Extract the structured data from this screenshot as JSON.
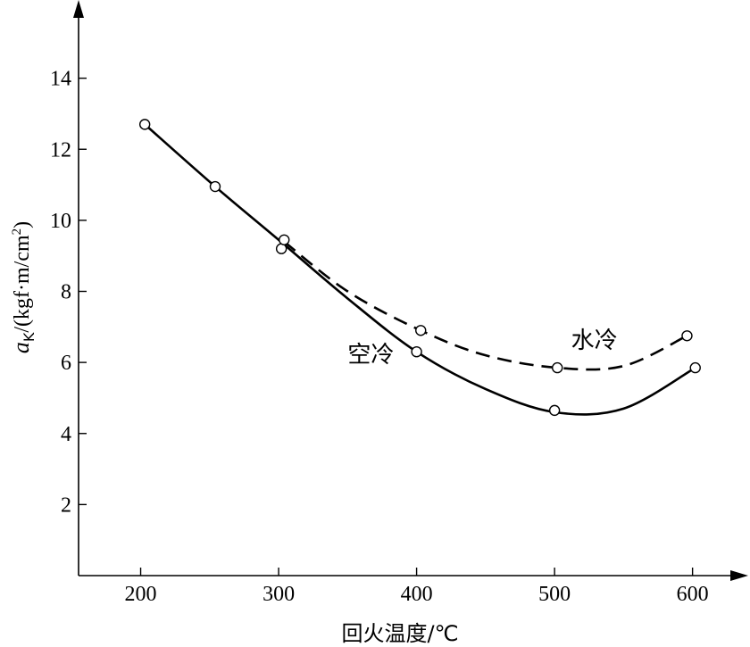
{
  "chart_data": {
    "type": "line",
    "xlabel": "回火温度/℃",
    "ylabel_main": "a",
    "ylabel_sub": "K",
    "ylabel_unit": "/(kgf·m/cm",
    "ylabel_sup": "2",
    "ylabel_close": ")",
    "xlim": [
      155,
      630
    ],
    "ylim": [
      0,
      16
    ],
    "x_ticks": [
      200,
      300,
      400,
      500,
      600
    ],
    "y_ticks": [
      2,
      4,
      6,
      8,
      10,
      12,
      14
    ],
    "grid": false,
    "legend": "none",
    "series": [
      {
        "name": "空冷",
        "line_style": "solid",
        "points": [
          [
            203,
            12.7
          ],
          [
            254,
            10.95
          ],
          [
            302,
            9.2
          ],
          [
            400,
            6.3
          ],
          [
            500,
            4.65
          ],
          [
            602,
            5.85
          ]
        ],
        "curve": [
          [
            203,
            12.7
          ],
          [
            254,
            10.95
          ],
          [
            300,
            9.45
          ],
          [
            350,
            7.8
          ],
          [
            400,
            6.3
          ],
          [
            450,
            5.25
          ],
          [
            500,
            4.6
          ],
          [
            550,
            4.7
          ],
          [
            602,
            5.85
          ]
        ]
      },
      {
        "name": "水冷",
        "line_style": "dashed",
        "points": [
          [
            304,
            9.45
          ],
          [
            403,
            6.9
          ],
          [
            502,
            5.85
          ],
          [
            596,
            6.75
          ]
        ],
        "curve": [
          [
            304,
            9.4
          ],
          [
            350,
            8.0
          ],
          [
            403,
            6.9
          ],
          [
            450,
            6.2
          ],
          [
            502,
            5.85
          ],
          [
            550,
            5.9
          ],
          [
            596,
            6.75
          ]
        ]
      }
    ],
    "annotations": [
      {
        "text": "空冷",
        "x": 350,
        "y": 6.0
      },
      {
        "text": "水冷",
        "x": 512,
        "y": 6.4
      }
    ]
  }
}
